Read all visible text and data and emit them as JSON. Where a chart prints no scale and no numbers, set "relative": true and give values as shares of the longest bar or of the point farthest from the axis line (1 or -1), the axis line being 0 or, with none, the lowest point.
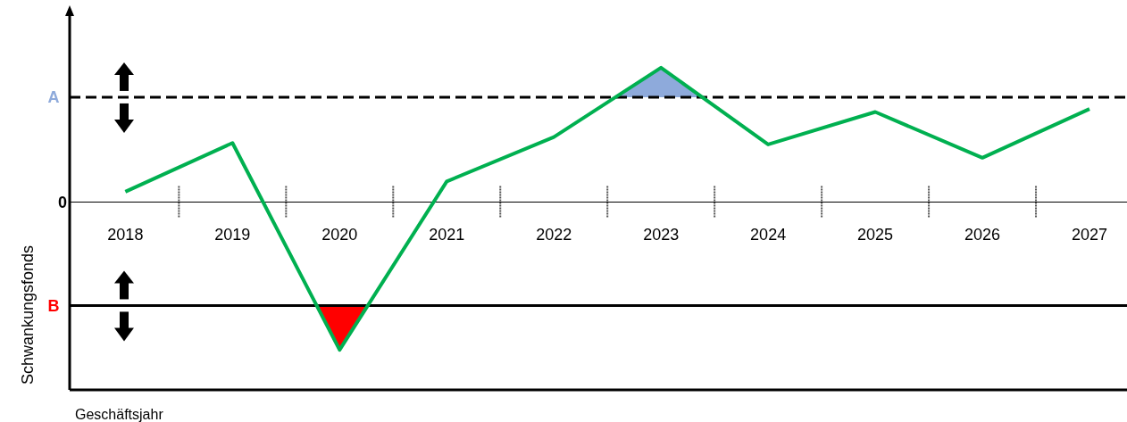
{
  "chart_data": {
    "type": "line",
    "relative": true,
    "ylabel": "Schwankungsfonds",
    "xlabel": "Geschäftsjahr",
    "categories": [
      "2018",
      "2019",
      "2020",
      "2021",
      "2022",
      "2023",
      "2024",
      "2025",
      "2026",
      "2027"
    ],
    "series": [
      {
        "color": "#00b050",
        "values": [
          0.07,
          0.4,
          -1,
          0.14,
          0.44,
          0.91,
          0.39,
          0.61,
          0.3,
          0.63
        ]
      }
    ],
    "ref_lines": [
      {
        "axis": "y",
        "value": 0.71,
        "label": "A",
        "color": "#000000",
        "line_style": "dashed"
      },
      {
        "axis": "y",
        "value": -0.7,
        "label": "B",
        "color": "#000000",
        "line_style": "solid"
      }
    ],
    "annotations": [
      "0"
    ],
    "marker": "none",
    "line_style": "solid"
  }
}
